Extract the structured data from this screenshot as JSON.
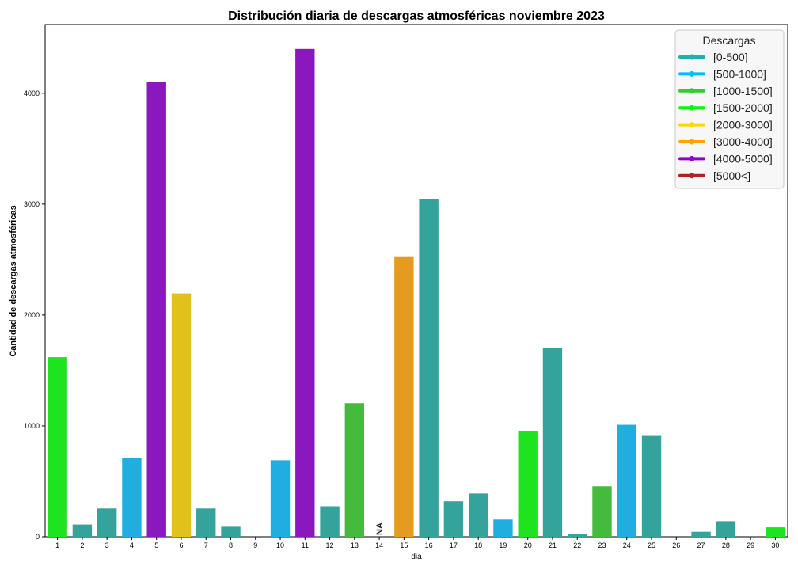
{
  "chart_data": {
    "type": "bar",
    "title": "Distribución diaria de descargas atmosféricas noviembre 2023",
    "xlabel": "dia",
    "ylabel": "Cantidad de descargas atmosféricas",
    "ylim": [
      0,
      4620
    ],
    "yticks": [
      0,
      1000,
      2000,
      3000,
      4000
    ],
    "grid": false,
    "legend_position": "top-right",
    "categories": [
      "1",
      "2",
      "3",
      "4",
      "5",
      "6",
      "7",
      "8",
      "9",
      "10",
      "11",
      "12",
      "13",
      "14",
      "15",
      "16",
      "17",
      "18",
      "19",
      "20",
      "21",
      "22",
      "23",
      "24",
      "25",
      "26",
      "27",
      "28",
      "29",
      "30"
    ],
    "values": [
      1620,
      110,
      255,
      710,
      4100,
      2195,
      255,
      90,
      0,
      690,
      4400,
      275,
      1205,
      null,
      2530,
      3045,
      320,
      390,
      155,
      955,
      1705,
      25,
      455,
      1010,
      910,
      0,
      45,
      140,
      0,
      85
    ],
    "bar_colors": [
      "#1fe31f",
      "#33a39b",
      "#33a39b",
      "#20aee0",
      "#8a18be",
      "#e0c21a",
      "#33a39b",
      "#33a39b",
      "#33a39b",
      "#20aee0",
      "#8a18be",
      "#33a39b",
      "#44bb3c",
      "#33a39b",
      "#e59c1e",
      "#33a39b",
      "#33a39b",
      "#33a39b",
      "#20aee0",
      "#1fe31f",
      "#33a39b",
      "#33a39b",
      "#44bb3c",
      "#20aee0",
      "#33a39b",
      "#33a39b",
      "#33a39b",
      "#33a39b",
      "#33a39b",
      "#1fe31f"
    ],
    "missing_label": "NA",
    "legend": {
      "title": "Descargas",
      "entries": [
        {
          "label": "[0-500]",
          "color": "#20b2aa"
        },
        {
          "label": "[500-1000]",
          "color": "#00bfff"
        },
        {
          "label": "[1000-1500]",
          "color": "#32cd32"
        },
        {
          "label": "[1500-2000]",
          "color": "#00ff00"
        },
        {
          "label": "[2000-3000]",
          "color": "#ffd700"
        },
        {
          "label": "[3000-4000]",
          "color": "#ffa500"
        },
        {
          "label": "[4000-5000]",
          "color": "#9400d3"
        },
        {
          "label": "[5000<]",
          "color": "#b22222"
        }
      ]
    }
  }
}
